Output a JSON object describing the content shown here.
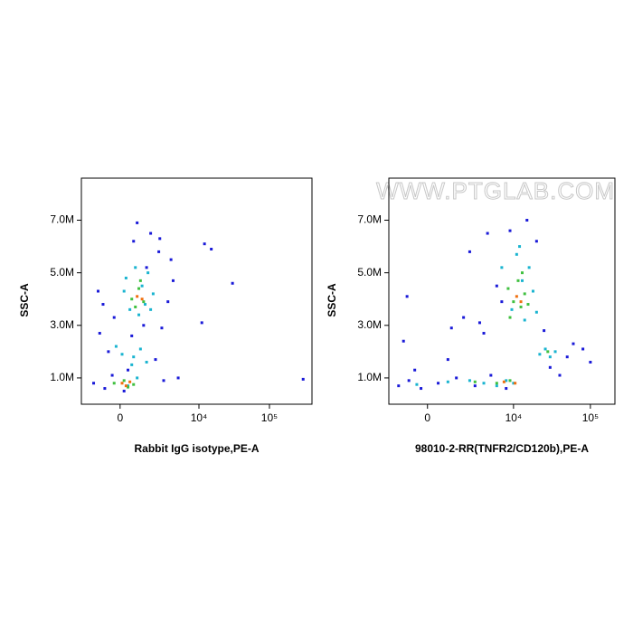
{
  "chart_data": [
    {
      "type": "scatter",
      "xlabel": "Rabbit IgG isotype,PE-A",
      "ylabel": "SSC-A",
      "xscale": "arcsinh",
      "xcofactor": 1540,
      "xlim": [
        -2500,
        400000
      ],
      "ylim": [
        0,
        8600000
      ],
      "xticks": [
        0,
        {
          "value": 10000,
          "label": "10⁴"
        },
        {
          "value": 100000,
          "label": "10⁵"
        }
      ],
      "yticks": [
        {
          "value": 1000000,
          "label": "1.0M"
        },
        {
          "value": 3000000,
          "label": "3.0M"
        },
        {
          "value": 5000000,
          "label": "5.0M"
        },
        {
          "value": 7000000,
          "label": "7.0M"
        }
      ],
      "series": [
        {
          "color": "#1a1ad8",
          "x": [
            -1500,
            -800,
            200,
            3000,
            5000,
            -1200,
            2500,
            4200,
            -600,
            1800,
            900,
            -300,
            3500,
            600,
            2200,
            12000,
            15000,
            30000,
            300000,
            11000,
            1500,
            -900,
            2800,
            400,
            -1100,
            700,
            3900,
            -400,
            1300,
            2600
          ],
          "y": [
            800000,
            600000,
            500000,
            900000,
            1000000,
            4300000,
            5800000,
            4700000,
            2000000,
            6500000,
            6900000,
            3300000,
            3900000,
            2600000,
            1700000,
            6100000,
            5900000,
            4600000,
            950000,
            3100000,
            5200000,
            3800000,
            2900000,
            1300000,
            2700000,
            6200000,
            5500000,
            1100000,
            3000000,
            6300000
          ]
        },
        {
          "color": "#1ab4d0",
          "x": [
            300,
            800,
            1200,
            1600,
            2000,
            500,
            1000,
            1400,
            1800,
            200,
            700,
            -200,
            100,
            600,
            1100,
            1500,
            400,
            900
          ],
          "y": [
            4800000,
            5200000,
            4500000,
            5000000,
            4200000,
            3600000,
            3400000,
            3800000,
            3600000,
            4300000,
            1800000,
            2200000,
            1900000,
            1500000,
            2100000,
            1600000,
            700000,
            1000000
          ]
        },
        {
          "color": "#40c040",
          "x": [
            600,
            1000,
            1300,
            800,
            1100,
            -300,
            200,
            700,
            400
          ],
          "y": [
            4000000,
            4400000,
            3900000,
            3700000,
            4700000,
            800000,
            900000,
            750000,
            650000
          ]
        },
        {
          "color": "#f07010",
          "x": [
            900,
            1200,
            100,
            500,
            300
          ],
          "y": [
            4100000,
            4000000,
            800000,
            850000,
            700000
          ]
        }
      ]
    },
    {
      "type": "scatter",
      "xlabel": "98010-2-RR(TNFR2/CD120b),PE-A",
      "ylabel": "SSC-A",
      "xscale": "arcsinh",
      "xcofactor": 1540,
      "xlim": [
        -2200,
        208000
      ],
      "ylim": [
        0,
        8600000
      ],
      "xticks": [
        0,
        {
          "value": 10000,
          "label": "10⁴"
        },
        {
          "value": 100000,
          "label": "10⁵"
        }
      ],
      "yticks": [
        {
          "value": 1000000,
          "label": "1.0M"
        },
        {
          "value": 3000000,
          "label": "3.0M"
        },
        {
          "value": 5000000,
          "label": "5.0M"
        },
        {
          "value": 7000000,
          "label": "7.0M"
        }
      ],
      "watermark": "WWW.PTGLAB.COM",
      "series": [
        {
          "color": "#1a1ad8",
          "x": [
            -1500,
            -900,
            -300,
            500,
            1500,
            3000,
            5000,
            8000,
            -1200,
            2000,
            4000,
            6000,
            30000,
            60000,
            100000,
            2500,
            1000,
            -600,
            4500,
            7000,
            15000,
            9000,
            25000,
            40000,
            50000,
            3500,
            -1000,
            1200,
            80000,
            20000
          ],
          "y": [
            700000,
            900000,
            600000,
            800000,
            1000000,
            700000,
            1100000,
            600000,
            2400000,
            3300000,
            2700000,
            4500000,
            1400000,
            2300000,
            1600000,
            5800000,
            1700000,
            1300000,
            6500000,
            3900000,
            7000000,
            6600000,
            2800000,
            1100000,
            1800000,
            3100000,
            4100000,
            2900000,
            2100000,
            6200000
          ]
        },
        {
          "color": "#1ab4d0",
          "x": [
            -500,
            1000,
            2500,
            4000,
            6000,
            8000,
            10000,
            7000,
            9500,
            11000,
            13000,
            16000,
            14000,
            18000,
            22000,
            26000,
            30000,
            35000,
            12000,
            20000
          ],
          "y": [
            750000,
            850000,
            900000,
            800000,
            700000,
            900000,
            800000,
            5200000,
            3600000,
            5700000,
            4700000,
            5200000,
            3200000,
            4300000,
            1900000,
            2100000,
            1800000,
            2000000,
            6000000,
            3500000
          ]
        },
        {
          "color": "#40c040",
          "x": [
            8500,
            10000,
            11500,
            12500,
            14000,
            15500,
            9000,
            13000,
            3000,
            6000,
            9000,
            28000
          ],
          "y": [
            4400000,
            3900000,
            4700000,
            3700000,
            4200000,
            3800000,
            3300000,
            5000000,
            850000,
            800000,
            900000,
            2000000
          ]
        },
        {
          "color": "#f07010",
          "x": [
            11000,
            12500,
            7500,
            10500
          ],
          "y": [
            4100000,
            3900000,
            850000,
            800000
          ]
        }
      ]
    }
  ]
}
